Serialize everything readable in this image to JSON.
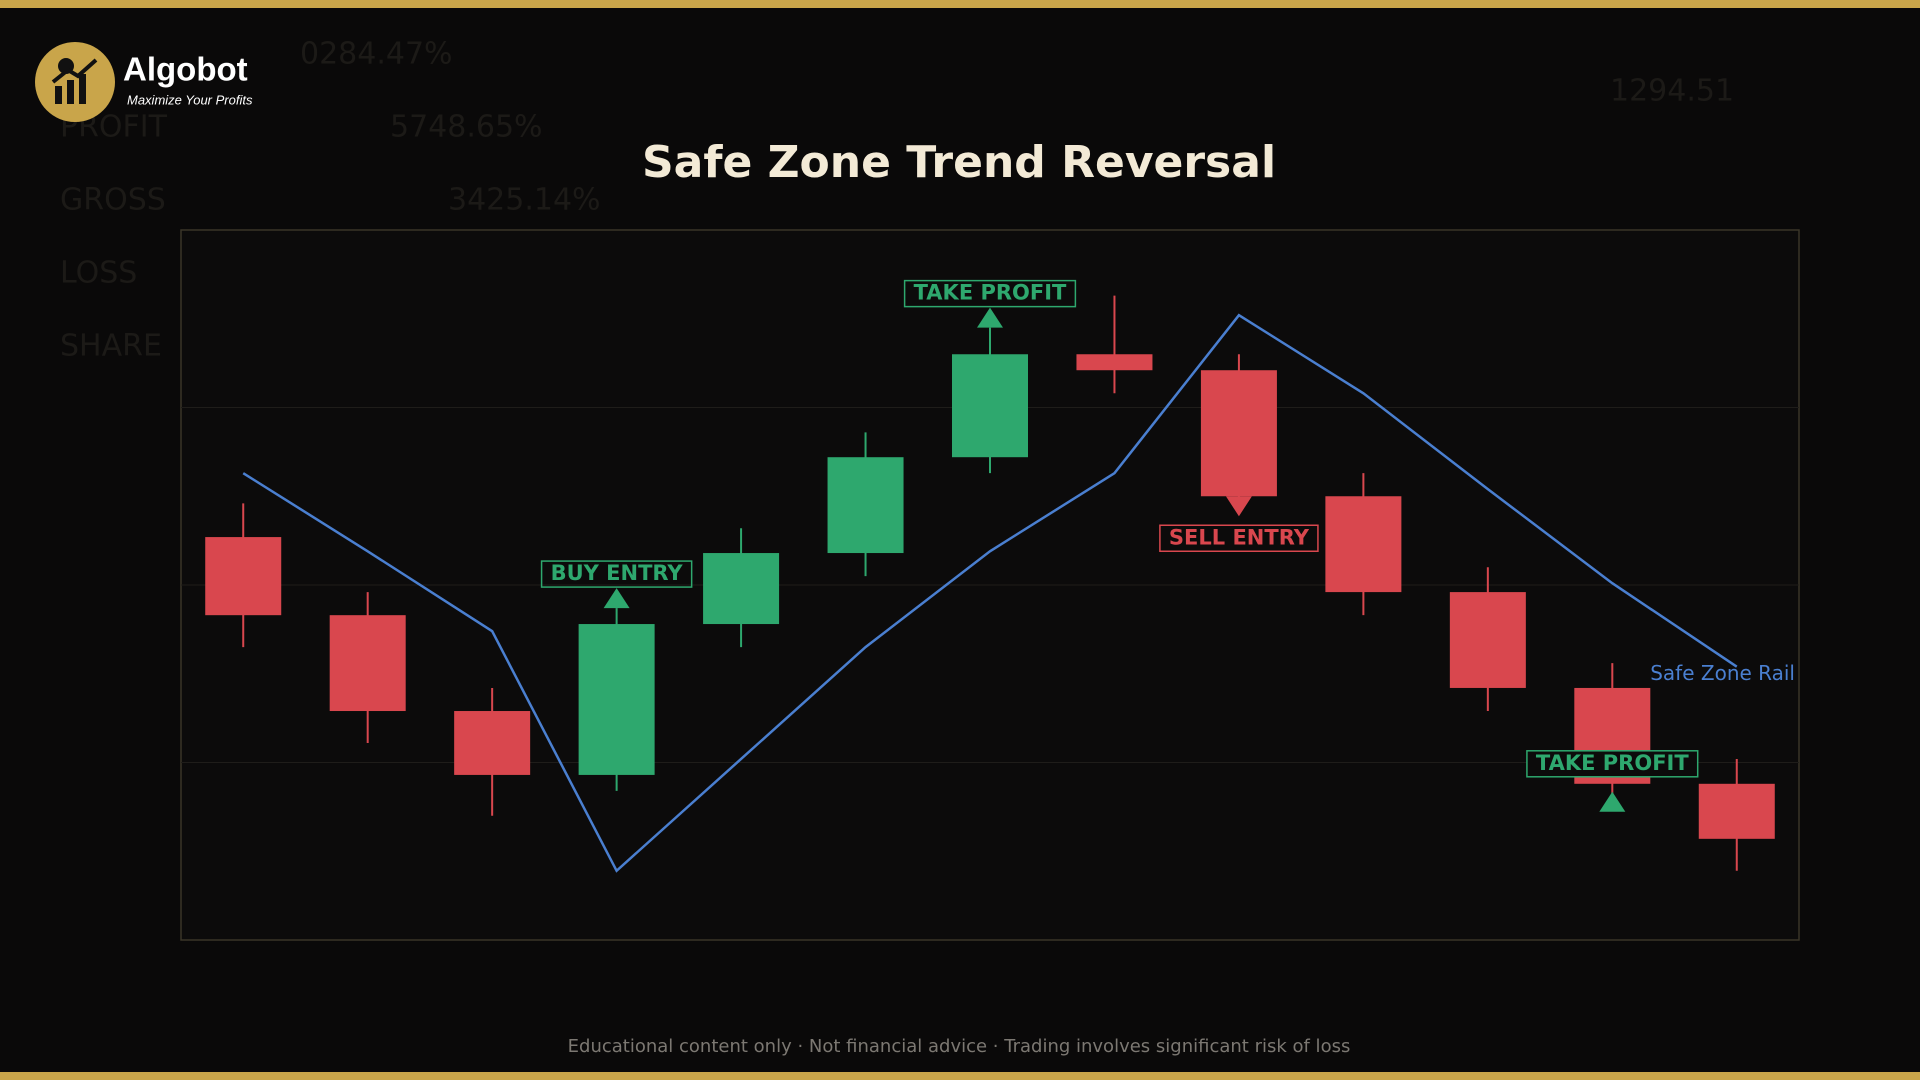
{
  "brand": {
    "name": "Algobot",
    "tagline": "Maximize Your Profits"
  },
  "background_texts": [
    "0284.47%",
    "PROFIT",
    "5748.65%",
    "GROSS",
    "3425.14%",
    "LOSS",
    "SHARE",
    "1294.51"
  ],
  "footer": "Educational content only  ·  Not financial advice  ·  Trading involves significant risk of loss",
  "chart_data": {
    "type": "candlestick",
    "title": "Safe Zone Trend Reversal",
    "categories": [
      null,
      null,
      null,
      null,
      null,
      null,
      null,
      null,
      null,
      null,
      null,
      null,
      null
    ],
    "open": [
      2.27,
      1.83,
      1.29,
      0.93,
      1.78,
      2.18,
      2.72,
      3.3,
      3.21,
      2.5,
      1.96,
      1.42,
      0.88
    ],
    "high": [
      2.46,
      1.96,
      1.42,
      1.87,
      2.32,
      2.86,
      3.45,
      3.63,
      3.3,
      2.63,
      2.1,
      1.56,
      1.02
    ],
    "low": [
      1.65,
      1.11,
      0.7,
      0.84,
      1.65,
      2.05,
      2.63,
      3.08,
      2.4,
      1.83,
      1.29,
      0.75,
      0.39
    ],
    "close": [
      1.83,
      1.29,
      0.93,
      1.78,
      2.18,
      2.72,
      3.3,
      3.21,
      2.5,
      1.96,
      1.42,
      0.88,
      0.57
    ],
    "up_color": "#2ea86e",
    "down_color": "#d9474e",
    "series": [
      {
        "name": "Safe Zone Rail",
        "color": "#4a7fd0",
        "values": [
          2.63,
          2.19,
          1.74,
          0.39,
          1.02,
          1.65,
          2.19,
          2.63,
          3.52,
          3.08,
          2.54,
          2.01,
          1.54
        ]
      }
    ],
    "annotations": [
      {
        "text": "BUY ENTRY",
        "index": 3,
        "color": "#2ea86e",
        "placement": "above"
      },
      {
        "text": "TAKE PROFIT",
        "index": 6,
        "color": "#2ea86e",
        "placement": "above"
      },
      {
        "text": "SELL ENTRY",
        "index": 8,
        "color": "#d9474e",
        "placement": "below"
      },
      {
        "text": "TAKE PROFIT",
        "index": 11,
        "color": "#2ea86e",
        "placement": "below"
      }
    ],
    "ylim": [
      0,
      4
    ],
    "yticks": [
      1,
      2,
      3
    ],
    "grid": true
  }
}
